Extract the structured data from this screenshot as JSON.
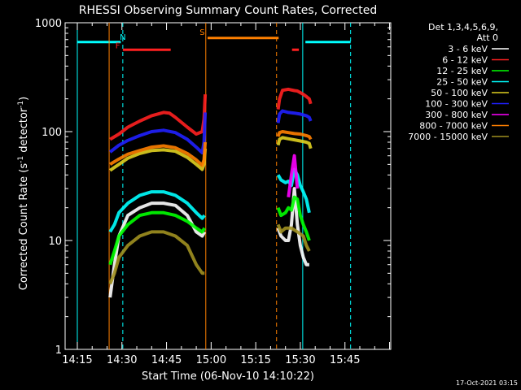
{
  "chart_data": {
    "type": "line",
    "title": "RHESSI Observing Summary Count Rates, Corrected",
    "xlabel": "Start Time (06-Nov-10 14:10:22)",
    "ylabel_main": "Corrected Count Rate (s",
    "ylabel_sup1": "-1",
    "ylabel_mid": " detector",
    "ylabel_sup2": "-1",
    "ylabel_end": ")",
    "y_scale": "log",
    "ylim": [
      1,
      1000
    ],
    "xlim_minutes": [
      14.1,
      16.0
    ],
    "x_ticks": [
      "14:15",
      "14:30",
      "14:45",
      "15:00",
      "15:15",
      "15:30",
      "15:45"
    ],
    "x_tick_minutes": [
      855,
      870,
      885,
      900,
      915,
      930,
      945
    ],
    "y_ticks": [
      "1",
      "10",
      "100",
      "1000"
    ],
    "y_tick_values": [
      1,
      10,
      100,
      1000
    ],
    "legend_header": [
      "Det 1,3,4,5,6,9,",
      "Att 0"
    ],
    "legend_position": "right",
    "series": [
      {
        "name": "3 - 6 keV",
        "color": "#ffffff",
        "segments": [
          {
            "x": [
              866.0,
              867.5,
              869.0,
              872.0,
              876.0,
              880.0,
              884.0,
              888.0,
              892.0,
              895.0,
              897.0,
              897.8
            ],
            "y": [
              3,
              6,
              11,
              17,
              20,
              22,
              22,
              21,
              17,
              12,
              11,
              12
            ]
          },
          {
            "x": [
              922.5,
              923.5,
              925.0,
              926.0,
              927.0,
              928.0,
              929.0,
              930.0,
              931.0,
              932.0,
              933.0
            ],
            "y": [
              13,
              11,
              10,
              10,
              14,
              30,
              14,
              9,
              7,
              6,
              6
            ]
          }
        ]
      },
      {
        "name": "6 - 12 keV",
        "color": "#ff2020",
        "segments": [
          {
            "x": [
              866.0,
              867.0,
              869.0,
              872.0,
              876.0,
              880.0,
              884.0,
              886.0,
              888.0,
              892.0,
              895.0,
              897.0,
              897.6,
              898.0
            ],
            "y": [
              85,
              88,
              95,
              110,
              125,
              140,
              150,
              148,
              135,
              110,
              95,
              100,
              130,
              220
            ]
          },
          {
            "x": [
              922.5,
              923.0,
              924.0,
              926.0,
              928.0,
              929.0,
              930.0,
              931.0,
              932.0,
              933.0,
              933.5
            ],
            "y": [
              160,
              200,
              240,
              245,
              238,
              236,
              228,
              220,
              210,
              200,
              180
            ]
          }
        ]
      },
      {
        "name": "12 - 25 keV",
        "color": "#00ff00",
        "segments": [
          {
            "x": [
              866.0,
              867.5,
              869.0,
              872.0,
              876.0,
              880.0,
              884.0,
              888.0,
              892.0,
              895.0,
              897.0,
              897.8
            ],
            "y": [
              6,
              8,
              11,
              14,
              17,
              18,
              18,
              17,
              15,
              13,
              12,
              13
            ]
          },
          {
            "x": [
              922.5,
              923.5,
              925.0,
              926.0,
              927.0,
              928.0,
              929.0,
              930.0,
              931.0,
              932.0,
              933.0
            ],
            "y": [
              20,
              17,
              18,
              20,
              19,
              25,
              24,
              17,
              14,
              12,
              10
            ]
          }
        ]
      },
      {
        "name": "25 - 50 keV",
        "color": "#00ffff",
        "segments": [
          {
            "x": [
              866.0,
              867.5,
              869.0,
              872.0,
              876.0,
              880.0,
              884.0,
              888.0,
              892.0,
              895.0,
              897.0,
              897.8
            ],
            "y": [
              12,
              14,
              18,
              22,
              26,
              28,
              28,
              26,
              22,
              18,
              16,
              17
            ]
          },
          {
            "x": [
              922.5,
              923.5,
              925.0,
              926.0,
              927.0,
              928.0,
              929.0,
              930.0,
              931.0,
              932.0,
              933.0
            ],
            "y": [
              40,
              36,
              34,
              35,
              32,
              45,
              40,
              32,
              28,
              24,
              18
            ]
          }
        ]
      },
      {
        "name": "50 - 100 keV",
        "color": "#e0d020",
        "segments": [
          {
            "x": [
              866.0,
              867.0,
              869.0,
              872.0,
              876.0,
              880.0,
              884.0,
              888.0,
              892.0,
              895.0,
              897.0,
              897.6,
              898.0
            ],
            "y": [
              44,
              46,
              50,
              57,
              63,
              67,
              68,
              66,
              58,
              50,
              45,
              50,
              70
            ]
          },
          {
            "x": [
              922.5,
              923.0,
              924.0,
              926.0,
              928.0,
              930.0,
              932.0,
              933.0,
              933.5
            ],
            "y": [
              75,
              85,
              88,
              86,
              84,
              82,
              80,
              78,
              70
            ]
          }
        ]
      },
      {
        "name": "100 - 300 keV",
        "color": "#2020ff",
        "segments": [
          {
            "x": [
              866.0,
              867.0,
              869.0,
              872.0,
              876.0,
              880.0,
              884.0,
              888.0,
              892.0,
              895.0,
              897.0,
              897.6,
              898.0
            ],
            "y": [
              65,
              68,
              75,
              83,
              92,
              100,
              103,
              98,
              85,
              72,
              64,
              80,
              150
            ]
          },
          {
            "x": [
              922.5,
              923.0,
              924.0,
              926.0,
              928.0,
              930.0,
              932.0,
              933.0,
              933.5
            ],
            "y": [
              120,
              145,
              155,
              150,
              148,
              145,
              140,
              135,
              125
            ]
          }
        ]
      },
      {
        "name": "300 - 800 keV",
        "color": "#ff00ff",
        "segments": [
          {
            "x": [
              926.0,
              927.0,
              928.0,
              929.0
            ],
            "y": [
              25,
              40,
              60,
              30
            ]
          }
        ]
      },
      {
        "name": "800 - 7000 keV",
        "color": "#ff8000",
        "segments": [
          {
            "x": [
              866.0,
              867.0,
              869.0,
              872.0,
              876.0,
              880.0,
              884.0,
              888.0,
              892.0,
              895.0,
              897.0,
              897.6,
              898.0
            ],
            "y": [
              50,
              52,
              56,
              62,
              67,
              72,
              74,
              71,
              63,
              55,
              49,
              55,
              80
            ]
          },
          {
            "x": [
              922.5,
              923.0,
              924.0,
              926.0,
              928.0,
              930.0,
              932.0,
              933.0,
              933.5
            ],
            "y": [
              90,
              98,
              100,
              98,
              96,
              95,
              92,
              90,
              85
            ]
          }
        ]
      },
      {
        "name": "7000 - 15000 keV",
        "color": "#a09020",
        "segments": [
          {
            "x": [
              866.0,
              867.5,
              869.0,
              872.0,
              876.0,
              880.0,
              884.0,
              888.0,
              892.0,
              895.0,
              897.0,
              897.8
            ],
            "y": [
              4,
              5,
              7,
              9,
              11,
              12,
              12,
              11,
              9,
              6,
              5,
              5
            ]
          },
          {
            "x": [
              922.5,
              923.5,
              925.0,
              927.0,
              929.0,
              931.0,
              932.0,
              933.0
            ],
            "y": [
              14,
              12,
              13,
              13,
              12,
              11,
              9,
              8
            ]
          }
        ]
      }
    ],
    "annotations": [
      {
        "label": "N",
        "color": "#00ffff",
        "x": 870.3,
        "y": 700
      },
      {
        "label": "F",
        "color": "#ff2020",
        "x": 868.6,
        "y": 580
      },
      {
        "label": "S",
        "color": "#ff8000",
        "x": 897.0,
        "y": 770
      }
    ],
    "bars": [
      {
        "color": "#00ffff",
        "x_start": 855.0,
        "x_end": 869.6,
        "y": 665
      },
      {
        "color": "#00ffff",
        "x_start": 931.7,
        "x_end": 946.9,
        "y": 665
      },
      {
        "color": "#ff2020",
        "x_start": 870.3,
        "x_end": 886.4,
        "y": 565
      },
      {
        "color": "#ff2020",
        "x_start": 927.2,
        "x_end": 929.5,
        "y": 565
      },
      {
        "color": "#ff8000",
        "x_start": 898.8,
        "x_end": 922.7,
        "y": 725
      }
    ],
    "vlines": [
      {
        "color": "#00ffff",
        "x": 855.0,
        "dashed": false
      },
      {
        "color": "#00ffff",
        "x": 870.3,
        "dashed": true
      },
      {
        "color": "#ff8000",
        "x": 865.7,
        "dashed": false
      },
      {
        "color": "#ff8000",
        "x": 898.2,
        "dashed": false
      },
      {
        "color": "#ff8000",
        "x": 922.0,
        "dashed": true
      },
      {
        "color": "#00ffff",
        "x": 930.8,
        "dashed": false
      },
      {
        "color": "#00ffff",
        "x": 946.9,
        "dashed": true
      }
    ]
  },
  "footer": {
    "timestamp": "17-Oct-2021 03:15"
  }
}
